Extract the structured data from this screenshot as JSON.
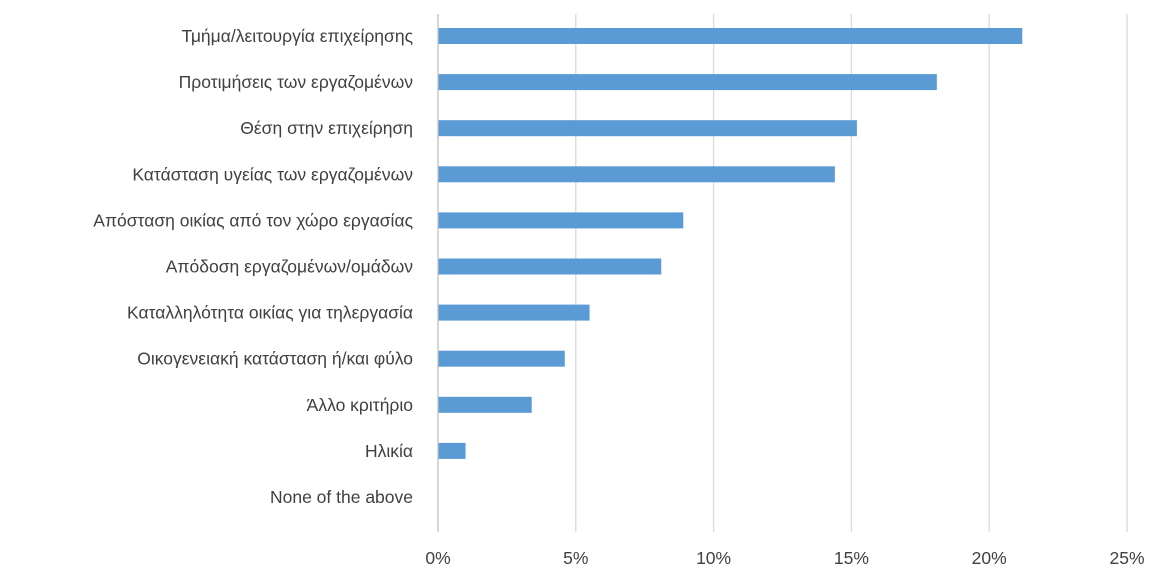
{
  "chart_data": {
    "type": "bar",
    "orientation": "horizontal",
    "categories": [
      "Τμήμα/λειτουργία επιχείρησης",
      "Προτιμήσεις των εργαζομένων",
      "Θέση στην επιχείρηση",
      "Κατάσταση υγείας των εργαζομένων",
      "Απόσταση οικίας από τον χώρο εργασίας",
      "Απόδοση εργαζομένων/ομάδων",
      "Καταλληλότητα οικίας για τηλεργασία",
      "Οικογενειακή κατάσταση ή/και φύλο",
      "Άλλο κριτήριο",
      "Ηλικία",
      "None of the above"
    ],
    "values": [
      21.2,
      18.1,
      15.2,
      14.4,
      8.9,
      8.1,
      5.5,
      4.6,
      3.4,
      1.0,
      0
    ],
    "xlim": [
      0,
      25
    ],
    "ticks": [
      0,
      5,
      10,
      15,
      20,
      25
    ],
    "tick_labels": [
      "0%",
      "5%",
      "10%",
      "15%",
      "20%",
      "25%"
    ],
    "bar_color": "#5b9bd5",
    "grid": true,
    "legend": "none",
    "title": "",
    "xlabel": "",
    "ylabel": ""
  }
}
